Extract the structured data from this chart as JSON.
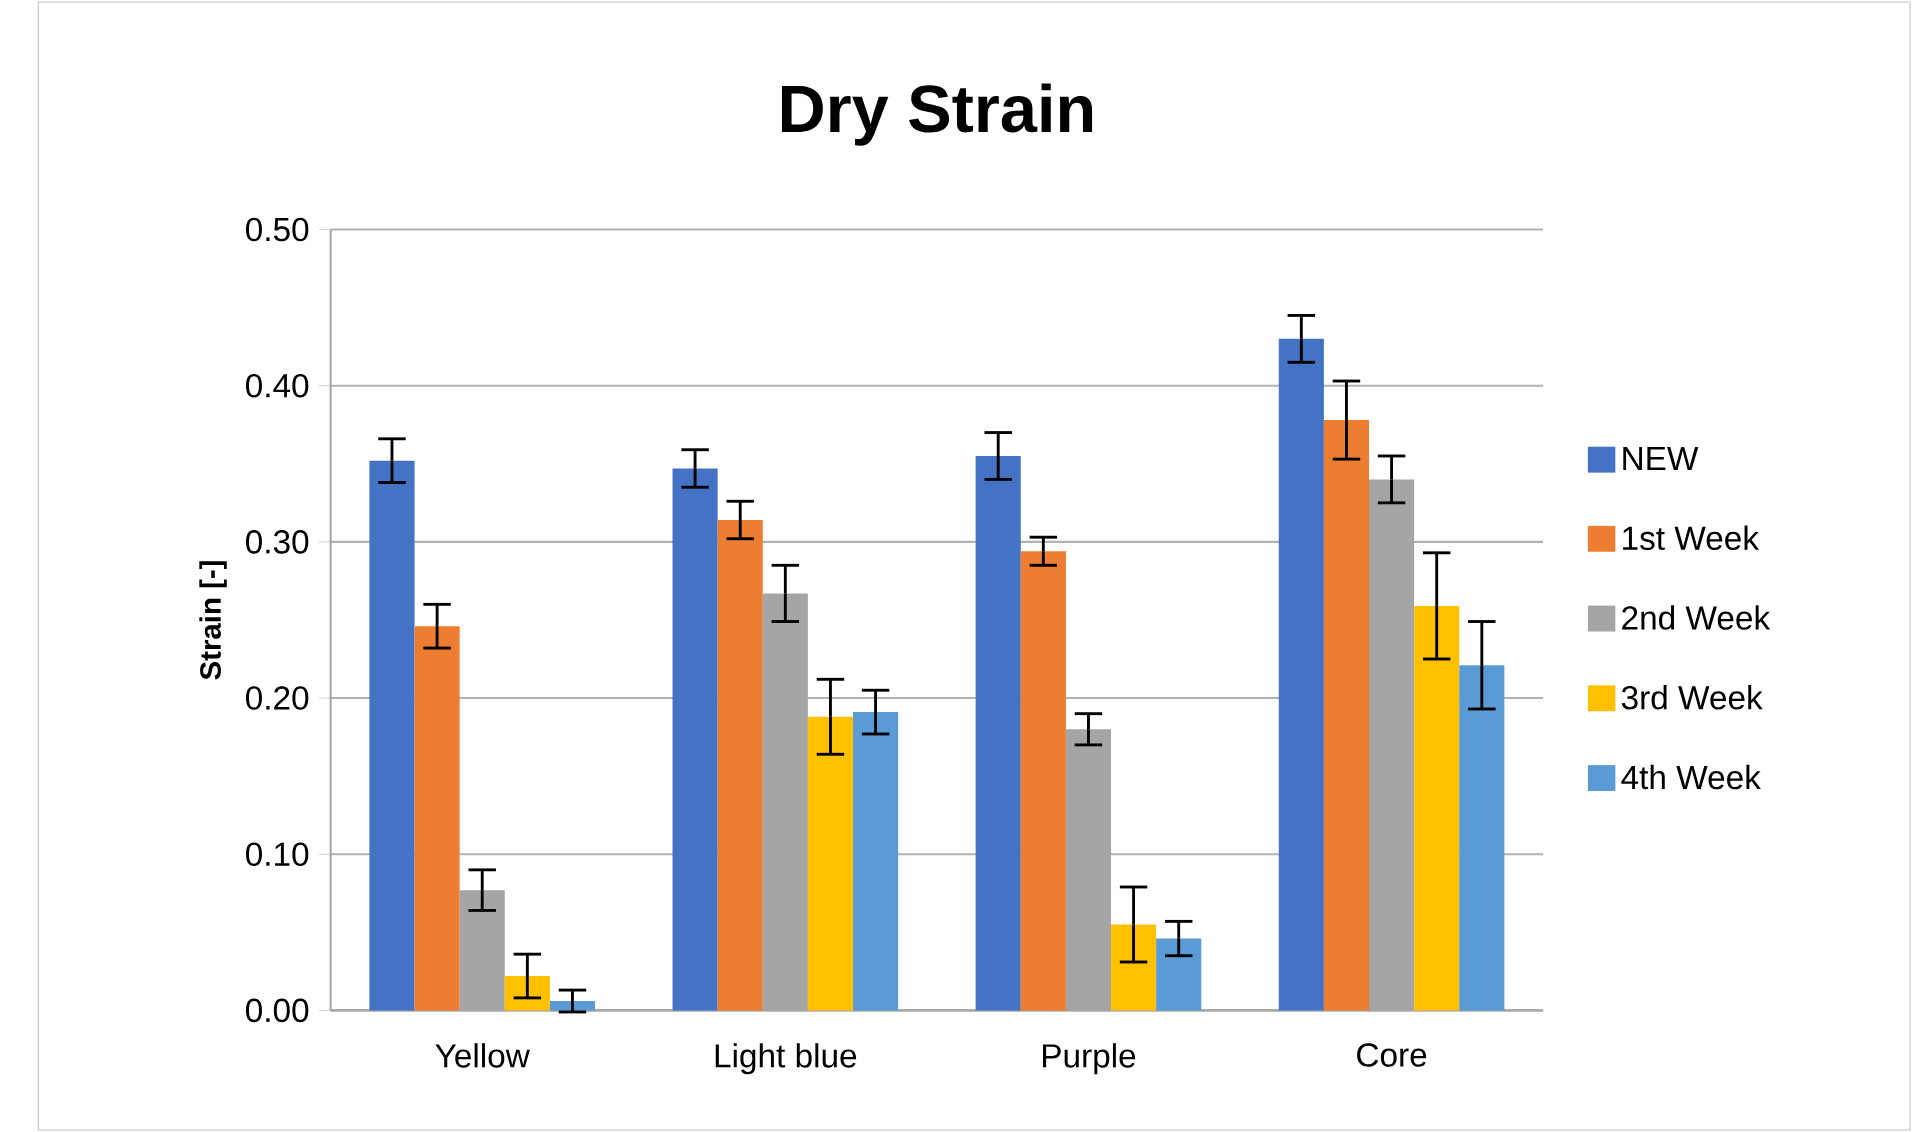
{
  "chart_data": {
    "type": "bar",
    "title": "Dry Strain",
    "ylabel": "Strain [-]",
    "categories": [
      "Yellow",
      "Light blue",
      "Purple",
      "Core"
    ],
    "series": [
      {
        "name": "NEW",
        "color": "#4472c4",
        "values": [
          0.352,
          0.347,
          0.355,
          0.43
        ],
        "errors": [
          0.014,
          0.012,
          0.015,
          0.015
        ]
      },
      {
        "name": "1st Week",
        "color": "#ed7d31",
        "values": [
          0.246,
          0.314,
          0.294,
          0.378
        ],
        "errors": [
          0.014,
          0.012,
          0.009,
          0.025
        ]
      },
      {
        "name": "2nd Week",
        "color": "#a5a5a5",
        "values": [
          0.077,
          0.267,
          0.18,
          0.34
        ],
        "errors": [
          0.013,
          0.018,
          0.01,
          0.015
        ]
      },
      {
        "name": "3rd Week",
        "color": "#ffc000",
        "values": [
          0.022,
          0.188,
          0.055,
          0.259
        ],
        "errors": [
          0.014,
          0.024,
          0.024,
          0.034
        ]
      },
      {
        "name": "4th Week",
        "color": "#5b9bd5",
        "values": [
          0.006,
          0.191,
          0.046,
          0.221
        ],
        "errors": [
          0.007,
          0.014,
          0.011,
          0.028
        ]
      }
    ],
    "ylim": [
      0,
      0.5
    ],
    "yticks": [
      {
        "value": 0,
        "label": "0.00"
      },
      {
        "value": 0.1,
        "label": "0.10"
      },
      {
        "value": 0.2,
        "label": "0.20"
      },
      {
        "value": 0.3,
        "label": "0.30"
      },
      {
        "value": 0.4,
        "label": "0.40"
      },
      {
        "value": 0.5,
        "label": "0.50"
      }
    ],
    "grid": "y",
    "legend": "right"
  }
}
